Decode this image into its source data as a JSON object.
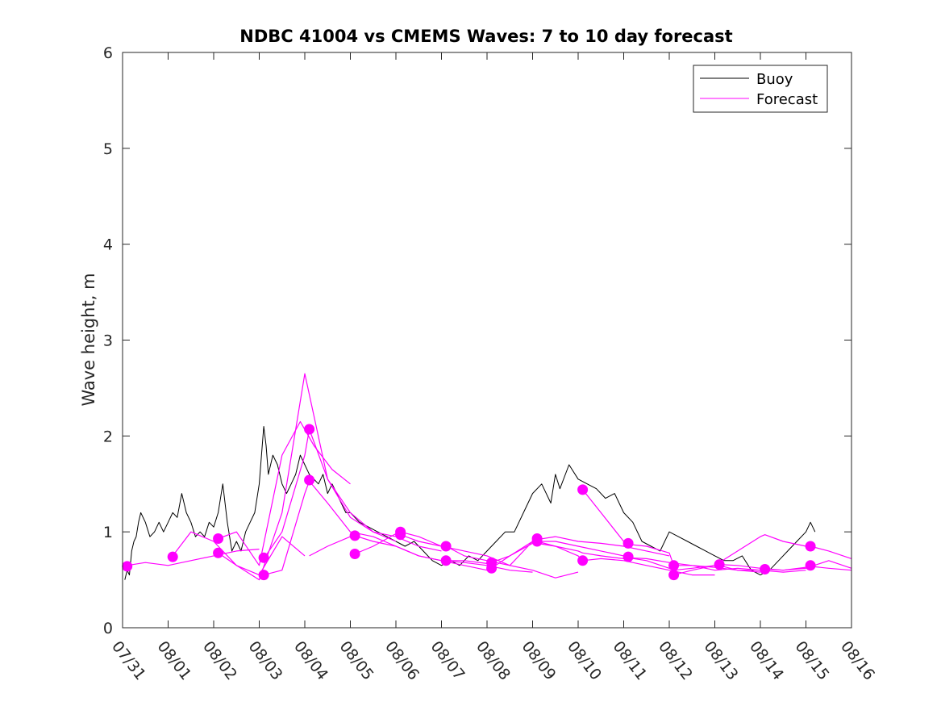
{
  "chart_data": {
    "type": "line",
    "title": "NDBC 41004 vs CMEMS Waves: 7 to 10 day forecast",
    "xlabel": "",
    "ylabel": "Wave height, m",
    "xlim": [
      0,
      16
    ],
    "ylim": [
      0,
      6
    ],
    "x_ticks": [
      0,
      1,
      2,
      3,
      4,
      5,
      6,
      7,
      8,
      9,
      10,
      11,
      12,
      13,
      14,
      15,
      16
    ],
    "x_tick_labels": [
      "07/31",
      "08/01",
      "08/02",
      "08/03",
      "08/04",
      "08/05",
      "08/06",
      "08/07",
      "08/08",
      "08/09",
      "08/10",
      "08/11",
      "08/12",
      "08/13",
      "08/14",
      "08/15",
      "08/16"
    ],
    "y_ticks": [
      0,
      1,
      2,
      3,
      4,
      5,
      6
    ],
    "y_tick_labels": [
      "0",
      "1",
      "2",
      "3",
      "4",
      "5",
      "6"
    ],
    "grid": false,
    "legend": {
      "placement": "top-right",
      "entries": [
        "Buoy",
        "Forecast"
      ]
    },
    "colors": {
      "buoy": "#000000",
      "forecast": "#ff00ff",
      "axes": "#262626"
    },
    "buoy": {
      "name": "Buoy",
      "x": [
        0.05,
        0.1,
        0.15,
        0.2,
        0.25,
        0.3,
        0.35,
        0.4,
        0.5,
        0.6,
        0.7,
        0.8,
        0.9,
        1.0,
        1.1,
        1.2,
        1.3,
        1.4,
        1.5,
        1.6,
        1.7,
        1.8,
        1.9,
        2.0,
        2.1,
        2.2,
        2.3,
        2.4,
        2.5,
        2.6,
        2.7,
        2.8,
        2.9,
        3.0,
        3.05,
        3.1,
        3.15,
        3.2,
        3.3,
        3.4,
        3.5,
        3.6,
        3.7,
        3.8,
        3.9,
        4.0,
        4.1,
        4.2,
        4.3,
        4.4,
        4.5,
        4.6,
        4.7,
        4.8,
        4.9,
        5.0,
        5.2,
        5.4,
        5.6,
        5.8,
        6.0,
        6.2,
        6.4,
        6.6,
        6.8,
        7.0,
        7.2,
        7.4,
        7.6,
        7.8,
        8.0,
        8.2,
        8.4,
        8.6,
        8.8,
        9.0,
        9.2,
        9.4,
        9.5,
        9.6,
        9.8,
        10.0,
        10.2,
        10.4,
        10.6,
        10.8,
        11.0,
        11.2,
        11.4,
        11.6,
        11.8,
        12.0,
        12.2,
        12.4,
        12.6,
        12.8,
        13.0,
        13.2,
        13.4,
        13.6,
        13.8,
        14.0,
        14.2,
        14.4,
        14.6,
        14.8,
        15.0,
        15.1,
        15.2
      ],
      "values": [
        0.5,
        0.6,
        0.55,
        0.8,
        0.9,
        0.95,
        1.1,
        1.2,
        1.1,
        0.95,
        1.0,
        1.1,
        1.0,
        1.1,
        1.2,
        1.15,
        1.4,
        1.2,
        1.1,
        0.95,
        1.0,
        0.95,
        1.1,
        1.05,
        1.2,
        1.5,
        1.1,
        0.8,
        0.9,
        0.8,
        1.0,
        1.1,
        1.2,
        1.5,
        1.8,
        2.1,
        1.9,
        1.6,
        1.8,
        1.7,
        1.5,
        1.4,
        1.5,
        1.6,
        1.8,
        1.7,
        1.6,
        1.55,
        1.5,
        1.6,
        1.4,
        1.5,
        1.4,
        1.3,
        1.2,
        1.2,
        1.1,
        1.05,
        1.0,
        0.95,
        0.9,
        0.85,
        0.9,
        0.8,
        0.7,
        0.65,
        0.7,
        0.65,
        0.75,
        0.7,
        0.8,
        0.9,
        1.0,
        1.0,
        1.2,
        1.4,
        1.5,
        1.3,
        1.6,
        1.45,
        1.7,
        1.55,
        1.5,
        1.45,
        1.35,
        1.4,
        1.2,
        1.1,
        0.9,
        0.85,
        0.8,
        1.0,
        0.95,
        0.9,
        0.85,
        0.8,
        0.75,
        0.7,
        0.7,
        0.75,
        0.6,
        0.55,
        0.6,
        0.7,
        0.8,
        0.9,
        1.0,
        1.1,
        1.0
      ]
    },
    "forecast": {
      "name": "Forecast",
      "series": [
        {
          "x": [
            0.1,
            0.5,
            1.0,
            1.5,
            2.0,
            2.5,
            3.0
          ],
          "values": [
            0.65,
            0.68,
            0.65,
            0.7,
            0.75,
            0.8,
            0.82
          ]
        },
        {
          "x": [
            1.1,
            1.5,
            2.0,
            2.5,
            3.0,
            3.5,
            4.0
          ],
          "values": [
            0.75,
            1.0,
            0.9,
            0.65,
            0.55,
            0.95,
            0.75
          ]
        },
        {
          "x": [
            2.1,
            2.5,
            3.0,
            3.5,
            3.9,
            4.2,
            4.6,
            5.0
          ],
          "values": [
            0.93,
            1.0,
            0.65,
            1.8,
            2.15,
            1.9,
            1.65,
            1.5
          ]
        },
        {
          "x": [
            2.1,
            2.5,
            3.0,
            3.5,
            4.0,
            4.5,
            5.0,
            5.5,
            6.0
          ],
          "values": [
            0.78,
            0.65,
            0.5,
            1.2,
            2.65,
            1.55,
            1.2,
            1.0,
            0.9
          ]
        },
        {
          "x": [
            3.1,
            3.5,
            4.0,
            4.1,
            4.5,
            5.0,
            5.5,
            6.0,
            6.5,
            7.0
          ],
          "values": [
            0.72,
            1.0,
            1.8,
            2.07,
            1.55,
            1.15,
            1.0,
            0.95,
            0.85,
            0.8
          ]
        },
        {
          "x": [
            3.1,
            3.5,
            4.0,
            4.1,
            4.5,
            5.0,
            5.5,
            6.0,
            6.5,
            7.0,
            7.5,
            8.0
          ],
          "values": [
            0.55,
            0.6,
            1.4,
            1.53,
            1.3,
            1.0,
            0.95,
            0.85,
            0.75,
            0.7,
            0.65,
            0.6
          ]
        },
        {
          "x": [
            4.1,
            4.5,
            5.0,
            5.1,
            5.5,
            6.0,
            6.5,
            7.0,
            7.5,
            8.0,
            8.5,
            9.0
          ],
          "values": [
            0.75,
            0.85,
            0.95,
            0.96,
            0.9,
            0.85,
            0.75,
            0.7,
            0.68,
            0.65,
            0.6,
            0.58
          ]
        },
        {
          "x": [
            5.1,
            5.5,
            6.0,
            6.1,
            6.5,
            7.0,
            7.5,
            8.0,
            8.5,
            9.0,
            9.5,
            10.0
          ],
          "values": [
            0.77,
            0.85,
            0.98,
            1.0,
            0.95,
            0.85,
            0.8,
            0.75,
            0.65,
            0.6,
            0.52,
            0.58
          ]
        },
        {
          "x": [
            6.1,
            6.5,
            7.0,
            7.1,
            7.5,
            8.0,
            8.5,
            9.0,
            9.5,
            10.0,
            10.5,
            11.0
          ],
          "values": [
            0.97,
            0.9,
            0.85,
            0.85,
            0.75,
            0.7,
            0.65,
            0.9,
            0.9,
            0.85,
            0.8,
            0.75
          ]
        },
        {
          "x": [
            7.1,
            7.5,
            8.0,
            8.1,
            8.5,
            9.0,
            9.1,
            9.5,
            10.0,
            10.5,
            11.0,
            11.5,
            12.0
          ],
          "values": [
            0.7,
            0.7,
            0.67,
            0.68,
            0.75,
            0.9,
            0.92,
            0.95,
            0.9,
            0.88,
            0.85,
            0.8,
            0.75
          ]
        },
        {
          "x": [
            8.1,
            8.5,
            9.0,
            9.1,
            9.5,
            10.0,
            10.1,
            10.5,
            11.0,
            11.5,
            12.0,
            12.5,
            13.0
          ],
          "values": [
            0.62,
            0.75,
            0.88,
            0.88,
            0.85,
            0.75,
            0.7,
            0.72,
            0.7,
            0.65,
            0.6,
            0.55,
            0.55
          ]
        },
        {
          "x": [
            9.1,
            9.5,
            10.0,
            10.1,
            10.5,
            11.0,
            11.1,
            11.5,
            12.0,
            12.5,
            13.0,
            13.5,
            14.0
          ],
          "values": [
            0.9,
            0.85,
            0.8,
            0.78,
            0.75,
            0.72,
            0.73,
            0.72,
            0.68,
            0.65,
            0.63,
            0.6,
            0.58
          ]
        },
        {
          "x": [
            10.1,
            10.5,
            11.0,
            11.1,
            11.5,
            12.0,
            12.1,
            12.5,
            13.0,
            13.5,
            14.0,
            14.5,
            15.0
          ],
          "values": [
            1.44,
            1.2,
            0.9,
            0.87,
            0.85,
            0.78,
            0.65,
            0.65,
            0.6,
            0.62,
            0.6,
            0.58,
            0.6
          ]
        },
        {
          "x": [
            11.1,
            11.5,
            12.0,
            12.1,
            12.5,
            13.0,
            13.1,
            13.5,
            14.0,
            14.5,
            15.0,
            15.5,
            16.0
          ],
          "values": [
            0.73,
            0.7,
            0.62,
            0.6,
            0.62,
            0.65,
            0.66,
            0.65,
            0.62,
            0.6,
            0.62,
            0.7,
            0.62
          ]
        },
        {
          "x": [
            12.1,
            12.5,
            13.0,
            13.5,
            14.0,
            14.1,
            14.5,
            15.0,
            15.1,
            15.5,
            16.0
          ],
          "values": [
            0.55,
            0.6,
            0.65,
            0.8,
            0.95,
            0.97,
            0.9,
            0.85,
            0.85,
            0.8,
            0.72
          ]
        },
        {
          "x": [
            13.1,
            13.5,
            14.0,
            14.1,
            14.5,
            15.0,
            15.1,
            15.5,
            16.0
          ],
          "values": [
            0.65,
            0.6,
            0.6,
            0.61,
            0.6,
            0.63,
            0.64,
            0.62,
            0.6
          ]
        }
      ],
      "markers": {
        "x": [
          0.1,
          1.1,
          2.1,
          2.1,
          3.1,
          3.1,
          4.1,
          4.1,
          5.1,
          5.1,
          6.1,
          6.1,
          7.1,
          7.1,
          8.1,
          8.1,
          9.1,
          9.1,
          10.1,
          10.1,
          11.1,
          11.1,
          12.1,
          12.1,
          13.1,
          14.1,
          15.1,
          15.1
        ],
        "values": [
          0.64,
          0.74,
          0.93,
          0.78,
          0.73,
          0.55,
          2.07,
          1.54,
          0.96,
          0.77,
          1.0,
          0.97,
          0.85,
          0.7,
          0.68,
          0.62,
          0.93,
          0.9,
          1.44,
          0.7,
          0.88,
          0.74,
          0.65,
          0.55,
          0.66,
          0.61,
          0.85,
          0.65
        ]
      }
    }
  }
}
